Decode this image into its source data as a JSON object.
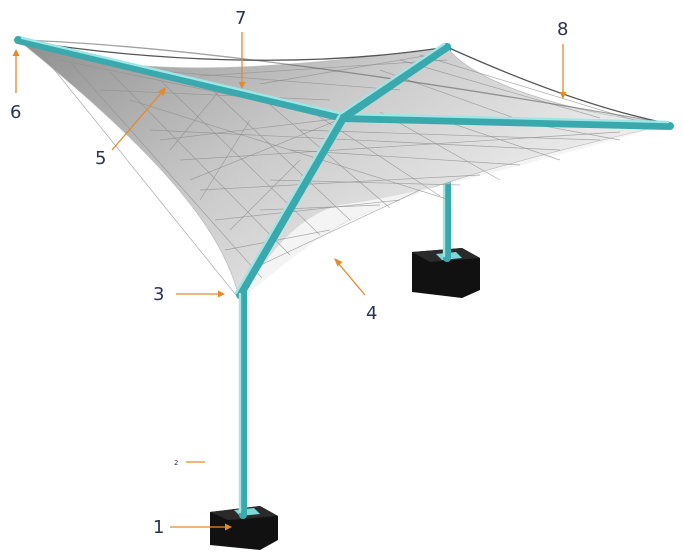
{
  "diagram": {
    "colors": {
      "frame": "#4fc3c7",
      "membrane_light": "#f2f2f2",
      "membrane_dark": "#9a9a9a",
      "footing": "#111111",
      "callout_text": "#2a3350",
      "arrow": "#e58a2a"
    },
    "callouts": [
      {
        "id": "1",
        "label": "1"
      },
      {
        "id": "2",
        "label": "2"
      },
      {
        "id": "3",
        "label": "3"
      },
      {
        "id": "4",
        "label": "4"
      },
      {
        "id": "5",
        "label": "5"
      },
      {
        "id": "6",
        "label": "6"
      },
      {
        "id": "7",
        "label": "7"
      },
      {
        "id": "8",
        "label": "8"
      }
    ]
  }
}
